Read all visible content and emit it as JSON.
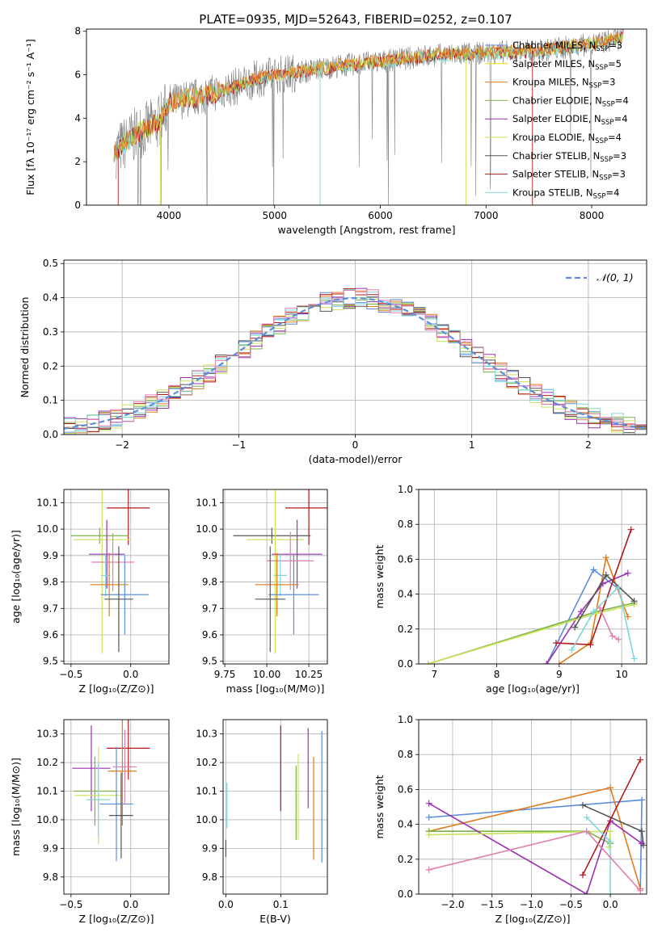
{
  "title": "PLATE=0935, MJD=52643, FIBERID=0252, z=0.107",
  "colors": {
    "Chabrier MILES": "#5b8ddc",
    "Salpeter MILES": "#e6e600",
    "Kroupa MILES": "#e07b1f",
    "Chabrier ELODIE": "#7db04a",
    "Salpeter ELODIE": "#9b30b0",
    "Kroupa ELODIE": "#c8e35a",
    "Chabrier STELIB": "#555555",
    "Salpeter STELIB": "#b01a1a",
    "Kroupa STELIB": "#7fd6d9",
    "data": "#808080",
    "normal": "#5b8ddc",
    "pink": "#e07fb0"
  },
  "chart_data": [
    {
      "type": "line",
      "panel": "spectrum",
      "xlabel": "wavelength [Angstrom, rest frame]",
      "ylabel": "Flux [fλ 10⁻¹⁷ erg cm⁻² s⁻¹ A⁻¹]",
      "xlim": [
        3220,
        8520
      ],
      "ylim": [
        0,
        8.1
      ],
      "xticks": [
        "4000",
        "5000",
        "6000",
        "7000",
        "8000"
      ],
      "yticks": [
        "0",
        "2",
        "4",
        "6",
        "8"
      ],
      "legend": [
        {
          "base": "Chabrier MILES, N",
          "sub": "SSP",
          "tail": "=3"
        },
        {
          "base": "Salpeter MILES, N",
          "sub": "SSP",
          "tail": "=5"
        },
        {
          "base": "Kroupa MILES, N",
          "sub": "SSP",
          "tail": "=3"
        },
        {
          "base": "Chabrier ELODIE, N",
          "sub": "SSP",
          "tail": "=4"
        },
        {
          "base": "Salpeter ELODIE, N",
          "sub": "SSP",
          "tail": "=4"
        },
        {
          "base": "Kroupa ELODIE, N",
          "sub": "SSP",
          "tail": "=4"
        },
        {
          "base": "Chabrier STELIB, N",
          "sub": "SSP",
          "tail": "=3"
        },
        {
          "base": "Salpeter STELIB, N",
          "sub": "SSP",
          "tail": "=3"
        },
        {
          "base": "Kroupa STELIB, N",
          "sub": "SSP",
          "tail": "=4"
        }
      ],
      "continuum": [
        [
          3500,
          2.5
        ],
        [
          3700,
          3.3
        ],
        [
          3900,
          3.8
        ],
        [
          4000,
          4.7
        ],
        [
          4300,
          5.0
        ],
        [
          4600,
          5.4
        ],
        [
          4900,
          5.9
        ],
        [
          5200,
          6.1
        ],
        [
          5600,
          6.4
        ],
        [
          6000,
          6.6
        ],
        [
          6500,
          6.9
        ],
        [
          7000,
          7.0
        ],
        [
          7500,
          7.1
        ],
        [
          8000,
          7.4
        ],
        [
          8300,
          7.7
        ]
      ]
    },
    {
      "type": "line",
      "panel": "residuals",
      "xlabel": "(data-model)/error",
      "ylabel": "Normed distribution",
      "xlim": [
        -2.5,
        2.5
      ],
      "ylim": [
        0,
        0.51
      ],
      "xticks": [
        "−2",
        "−1",
        "0",
        "1",
        "2"
      ],
      "yticks": [
        "0.0",
        "0.1",
        "0.2",
        "0.3",
        "0.4",
        "0.5"
      ],
      "legend": "𝒩(0, 1)"
    },
    {
      "type": "scatter",
      "panel": "age-vs-Z",
      "xlabel": "Z [log₁₀(Z/Z⊙)]",
      "ylabel": "age  [log₁₀(age/yr)]",
      "xlim": [
        -0.56,
        0.32
      ],
      "ylim": [
        9.49,
        10.15
      ],
      "xticks": [
        "−0.5",
        "0.0"
      ],
      "yticks": [
        "9.5",
        "9.6",
        "9.7",
        "9.8",
        "9.9",
        "10.0",
        "10.1"
      ],
      "points": [
        {
          "x": -0.02,
          "y": 10.08,
          "xerr": 0.18,
          "yerr": 0.14,
          "c": "Salpeter STELIB"
        },
        {
          "x": -0.26,
          "y": 9.975,
          "xerr": 0.24,
          "yerr": 0.03,
          "c": "Chabrier ELODIE"
        },
        {
          "x": -0.24,
          "y": 9.96,
          "xerr": 0.24,
          "yerr": 0.43,
          "c": "Kroupa ELODIE"
        },
        {
          "x": -0.2,
          "y": 9.905,
          "xerr": 0.15,
          "yerr": 0.13,
          "c": "Salpeter ELODIE"
        },
        {
          "x": -0.15,
          "y": 9.875,
          "xerr": 0.18,
          "yerr": 0.11,
          "c": "pink"
        },
        {
          "x": -0.21,
          "y": 9.825,
          "xerr": 0.04,
          "yerr": 0.08,
          "c": "Kroupa STELIB"
        },
        {
          "x": -0.18,
          "y": 9.79,
          "xerr": 0.16,
          "yerr": 0.12,
          "c": "Kroupa MILES"
        },
        {
          "x": -0.05,
          "y": 9.752,
          "xerr": 0.2,
          "yerr": 0.15,
          "c": "Chabrier MILES"
        },
        {
          "x": -0.1,
          "y": 9.735,
          "xerr": 0.12,
          "yerr": 0.2,
          "c": "Chabrier STELIB"
        }
      ]
    },
    {
      "type": "scatter",
      "panel": "age-vs-mass",
      "xlabel": "mass [log₁₀(M/M⊙)]",
      "ylabel": "",
      "xlim": [
        9.74,
        10.36
      ],
      "ylim": [
        9.49,
        10.15
      ],
      "xticks": [
        "9.75",
        "10.00",
        "10.25"
      ],
      "yticks": [
        "9.5",
        "9.6",
        "9.7",
        "9.8",
        "9.9",
        "10.0",
        "10.1"
      ],
      "points": [
        {
          "x": 10.25,
          "y": 10.08,
          "xerr": 0.14,
          "yerr": 0.14,
          "c": "Salpeter STELIB"
        },
        {
          "x": 10.03,
          "y": 9.975,
          "xerr": 0.23,
          "yerr": 0.03,
          "c": "Chabrier STELIB"
        },
        {
          "x": 10.05,
          "y": 9.96,
          "xerr": 0.17,
          "yerr": 0.43,
          "c": "Kroupa ELODIE"
        },
        {
          "x": 10.18,
          "y": 9.905,
          "xerr": 0.15,
          "yerr": 0.13,
          "c": "Salpeter ELODIE"
        },
        {
          "x": 10.14,
          "y": 9.88,
          "xerr": 0.14,
          "yerr": 0.11,
          "c": "pink"
        },
        {
          "x": 10.08,
          "y": 9.825,
          "xerr": 0.04,
          "yerr": 0.08,
          "c": "Kroupa STELIB"
        },
        {
          "x": 10.06,
          "y": 9.79,
          "xerr": 0.13,
          "yerr": 0.12,
          "c": "Kroupa MILES"
        },
        {
          "x": 10.16,
          "y": 9.752,
          "xerr": 0.15,
          "yerr": 0.15,
          "c": "Chabrier MILES"
        },
        {
          "x": 10.02,
          "y": 9.735,
          "xerr": 0.09,
          "yerr": 0.2,
          "c": "Chabrier STELIB"
        }
      ]
    },
    {
      "type": "line",
      "panel": "weight-vs-age",
      "xlabel": "age  [log₁₀(age/yr)]",
      "ylabel": "mass weight",
      "xlim": [
        6.75,
        10.4
      ],
      "ylim": [
        0,
        1.0
      ],
      "xticks": [
        "7",
        "8",
        "9",
        "10"
      ],
      "yticks": [
        "0.0",
        "0.2",
        "0.4",
        "0.6",
        "0.8",
        "1.0"
      ],
      "series": [
        {
          "c": "Chabrier MILES",
          "x": [
            8.8,
            9.55,
            9.95
          ],
          "y": [
            0.0,
            0.54,
            0.43
          ]
        },
        {
          "c": "Kroupa MILES",
          "x": [
            9.0,
            9.5,
            9.75,
            10.1
          ],
          "y": [
            0.0,
            0.12,
            0.61,
            0.27
          ]
        },
        {
          "c": "Chabrier ELODIE",
          "x": [
            6.9,
            9.6,
            10.2
          ],
          "y": [
            0.0,
            0.3,
            0.35
          ]
        },
        {
          "c": "Salpeter ELODIE",
          "x": [
            8.8,
            9.35,
            9.7,
            10.1
          ],
          "y": [
            0.0,
            0.3,
            0.46,
            0.52
          ]
        },
        {
          "c": "Kroupa ELODIE",
          "x": [
            6.9,
            9.6,
            10.2
          ],
          "y": [
            0.0,
            0.29,
            0.34
          ]
        },
        {
          "c": "Chabrier STELIB",
          "x": [
            9.25,
            9.75,
            10.2
          ],
          "y": [
            0.21,
            0.51,
            0.36
          ]
        },
        {
          "c": "Salpeter STELIB",
          "x": [
            8.95,
            9.5,
            10.15
          ],
          "y": [
            0.12,
            0.11,
            0.77
          ]
        },
        {
          "c": "Kroupa STELIB",
          "x": [
            9.2,
            9.55,
            9.95,
            10.2
          ],
          "y": [
            0.08,
            0.3,
            0.44,
            0.03
          ]
        },
        {
          "c": "pink",
          "x": [
            9.65,
            9.85,
            9.95
          ],
          "y": [
            0.32,
            0.16,
            0.14
          ]
        }
      ]
    },
    {
      "type": "scatter",
      "panel": "mass-vs-Z",
      "xlabel": "Z [log₁₀(Z/Z⊙)]",
      "ylabel": "mass [log₁₀(M/M⊙)]",
      "xlim": [
        -0.56,
        0.32
      ],
      "ylim": [
        9.74,
        10.35
      ],
      "xticks": [
        "−0.5",
        "0.0"
      ],
      "yticks": [
        "9.8",
        "9.9",
        "10.0",
        "10.1",
        "10.2",
        "10.3"
      ],
      "points": [
        {
          "x": -0.02,
          "y": 10.25,
          "xerr": 0.18,
          "yerr": 0.11,
          "c": "Salpeter STELIB"
        },
        {
          "x": -0.33,
          "y": 10.18,
          "xerr": 0.16,
          "yerr": 0.15,
          "c": "Salpeter ELODIE"
        },
        {
          "x": -0.3,
          "y": 10.1,
          "xerr": 0.18,
          "yerr": 0.12,
          "c": "Chabrier ELODIE"
        },
        {
          "x": -0.27,
          "y": 10.085,
          "xerr": 0.2,
          "yerr": 0.17,
          "c": "Kroupa ELODIE"
        },
        {
          "x": -0.27,
          "y": 10.07,
          "xerr": 0.1,
          "yerr": 0.13,
          "c": "Kroupa STELIB"
        },
        {
          "x": -0.12,
          "y": 10.055,
          "xerr": 0.14,
          "yerr": 0.2,
          "c": "Chabrier MILES"
        },
        {
          "x": -0.07,
          "y": 10.17,
          "xerr": 0.12,
          "yerr": 0.19,
          "c": "Kroupa MILES"
        },
        {
          "x": -0.08,
          "y": 10.015,
          "xerr": 0.1,
          "yerr": 0.15,
          "c": "Chabrier STELIB"
        },
        {
          "x": -0.05,
          "y": 10.185,
          "xerr": 0.1,
          "yerr": 0.13,
          "c": "pink"
        }
      ]
    },
    {
      "type": "scatter",
      "panel": "mass-vs-EBV",
      "xlabel": "E(B-V)",
      "ylabel": "",
      "xlim": [
        -0.005,
        0.185
      ],
      "ylim": [
        9.74,
        10.35
      ],
      "xticks": [
        "0.0",
        "0.1"
      ],
      "yticks": [
        "9.8",
        "9.9",
        "10.0",
        "10.1",
        "10.2",
        "10.3"
      ],
      "points": [
        {
          "x": 0.0,
          "y": 9.9,
          "yerr": 0.03,
          "c": "Chabrier STELIB"
        },
        {
          "x": 0.002,
          "y": 10.05,
          "yerr": 0.08,
          "c": "Kroupa STELIB"
        },
        {
          "x": 0.1,
          "y": 10.18,
          "yerr": 0.15,
          "c": "Salpeter STELIB"
        },
        {
          "x": 0.128,
          "y": 10.06,
          "yerr": 0.13,
          "c": "Chabrier ELODIE"
        },
        {
          "x": 0.132,
          "y": 10.08,
          "yerr": 0.15,
          "c": "Kroupa ELODIE"
        },
        {
          "x": 0.15,
          "y": 10.18,
          "yerr": 0.14,
          "c": "Salpeter ELODIE"
        },
        {
          "x": 0.16,
          "y": 10.04,
          "yerr": 0.18,
          "c": "Kroupa MILES"
        },
        {
          "x": 0.175,
          "y": 10.08,
          "yerr": 0.23,
          "c": "Chabrier MILES"
        }
      ]
    },
    {
      "type": "line",
      "panel": "weight-vs-Z",
      "xlabel": "Z [log₁₀(Z/Z⊙)]",
      "ylabel": "mass weight",
      "xlim": [
        -2.43,
        0.46
      ],
      "ylim": [
        0,
        1.0
      ],
      "xticks": [
        "−2.0",
        "−1.5",
        "−1.0",
        "−0.5",
        "0.0"
      ],
      "yticks": [
        "0.0",
        "0.2",
        "0.4",
        "0.6",
        "0.8",
        "1.0"
      ],
      "series": [
        {
          "c": "Chabrier MILES",
          "x": [
            -2.3,
            0.4,
            0.38
          ],
          "y": [
            0.44,
            0.54,
            0.03
          ]
        },
        {
          "c": "Kroupa MILES",
          "x": [
            -2.3,
            0.0,
            0.38
          ],
          "y": [
            0.36,
            0.61,
            0.03
          ]
        },
        {
          "c": "Chabrier ELODIE",
          "x": [
            -2.3,
            -0.3,
            0.0
          ],
          "y": [
            0.36,
            0.36,
            0.29
          ]
        },
        {
          "c": "Salpeter ELODIE",
          "x": [
            -2.3,
            -0.3,
            0.0,
            0.4
          ],
          "y": [
            0.52,
            0.0,
            0.42,
            0.29
          ]
        },
        {
          "c": "Kroupa ELODIE",
          "x": [
            -2.3,
            0.0,
            -0.02
          ],
          "y": [
            0.34,
            0.36,
            0.27
          ]
        },
        {
          "c": "Chabrier STELIB",
          "x": [
            -0.35,
            0.4,
            0.42
          ],
          "y": [
            0.51,
            0.36,
            0.28
          ]
        },
        {
          "c": "Salpeter STELIB",
          "x": [
            -0.35,
            0.38
          ],
          "y": [
            0.11,
            0.77
          ]
        },
        {
          "c": "Kroupa STELIB",
          "x": [
            -0.3,
            0.0,
            0.0
          ],
          "y": [
            0.44,
            0.3,
            0.0
          ]
        },
        {
          "c": "pink",
          "x": [
            -2.3,
            -0.3,
            0.38
          ],
          "y": [
            0.14,
            0.36,
            0.02
          ]
        }
      ]
    }
  ]
}
